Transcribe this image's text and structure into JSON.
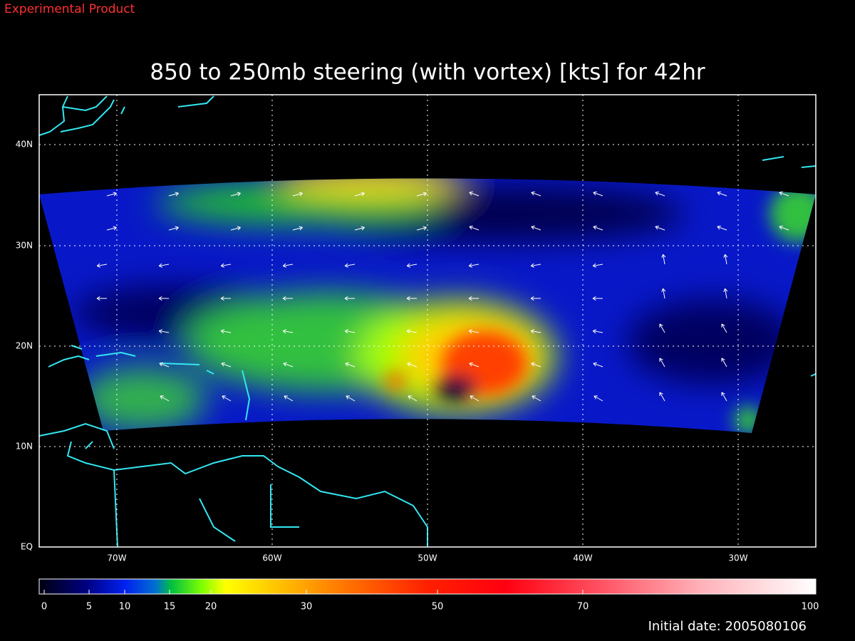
{
  "header": {
    "product": "Experimental Product",
    "title": "850 to 250mb steering (with vortex) [kts] for 42hr"
  },
  "map": {
    "lat_labels": [
      "40N",
      "30N",
      "20N",
      "10N",
      "EQ"
    ],
    "lon_labels": [
      "70W",
      "60W",
      "50W",
      "40W",
      "30W"
    ]
  },
  "colorbar": {
    "labels": [
      0,
      5,
      10,
      15,
      20,
      30,
      50,
      70,
      100
    ]
  },
  "footer": {
    "initial_date": "Initial date: 2005080106"
  }
}
